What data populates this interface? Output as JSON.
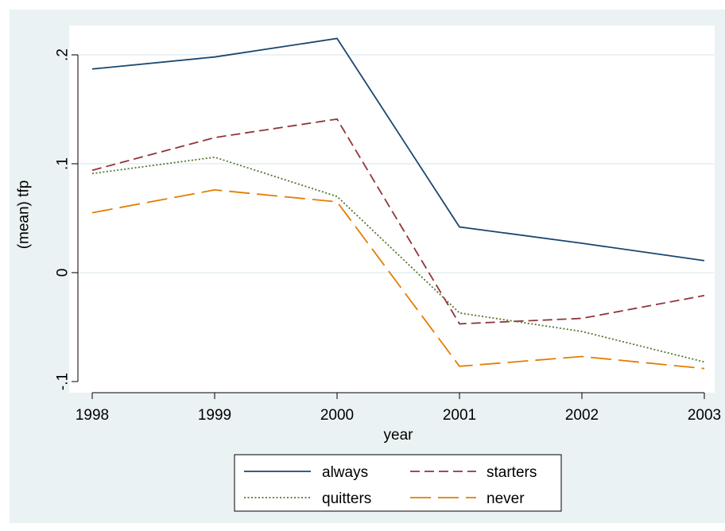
{
  "chart_data": {
    "type": "line",
    "title": "",
    "xlabel": "year",
    "ylabel": "(mean) tfp",
    "x": [
      1998,
      1999,
      2000,
      2001,
      2002,
      2003
    ],
    "x_tick_labels": [
      "1998",
      "1999",
      "2000",
      "2001",
      "2002",
      "2003"
    ],
    "y_ticks": [
      -0.1,
      0,
      0.1,
      0.2
    ],
    "y_tick_labels": [
      "-.1",
      "0",
      ".1",
      ".2"
    ],
    "xlim": [
      1998,
      2003
    ],
    "ylim": [
      -0.11,
      0.225
    ],
    "grid": "horizontal",
    "legend_position": "bottom",
    "background": "#eaf2f3",
    "plot_background": "#ffffff",
    "series": [
      {
        "name": "always",
        "color": "#1a476f",
        "dash": "solid",
        "values": [
          0.187,
          0.198,
          0.215,
          0.042,
          0.027,
          0.011
        ]
      },
      {
        "name": "starters",
        "color": "#90353b",
        "dash": "dashed",
        "values": [
          0.094,
          0.124,
          0.141,
          -0.047,
          -0.042,
          -0.021
        ]
      },
      {
        "name": "quitters",
        "color": "#55752f",
        "dash": "dotted",
        "values": [
          0.091,
          0.106,
          0.07,
          -0.037,
          -0.054,
          -0.082
        ]
      },
      {
        "name": "never",
        "color": "#e37e00",
        "dash": "longdash",
        "values": [
          0.055,
          0.076,
          0.065,
          -0.086,
          -0.077,
          -0.088
        ]
      }
    ]
  }
}
